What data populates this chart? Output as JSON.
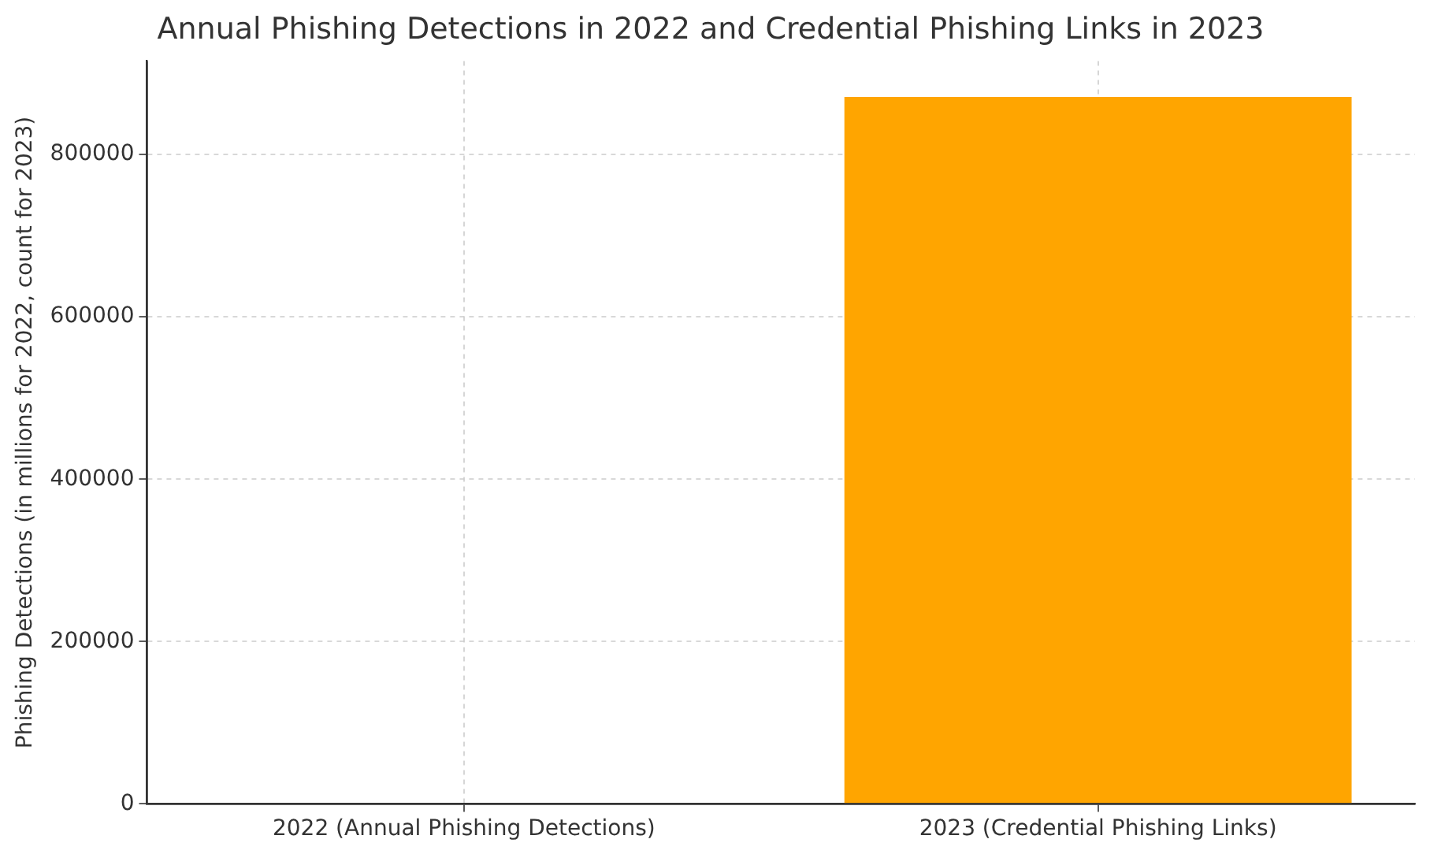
{
  "chart_data": {
    "type": "bar",
    "title": "Annual Phishing Detections in 2022 and Credential Phishing Links in 2023",
    "ylabel": "Phishing Detections (in millions for 2022, count for 2023)",
    "categories": [
      "2022 (Annual Phishing Detections)",
      "2023 (Credential Phishing Links)"
    ],
    "values": [
      0,
      871000
    ],
    "color": "#ffa500",
    "ylim": [
      0,
      915000
    ],
    "yticks": [
      0,
      200000,
      400000,
      600000,
      800000
    ],
    "grid": true,
    "legend": false
  }
}
